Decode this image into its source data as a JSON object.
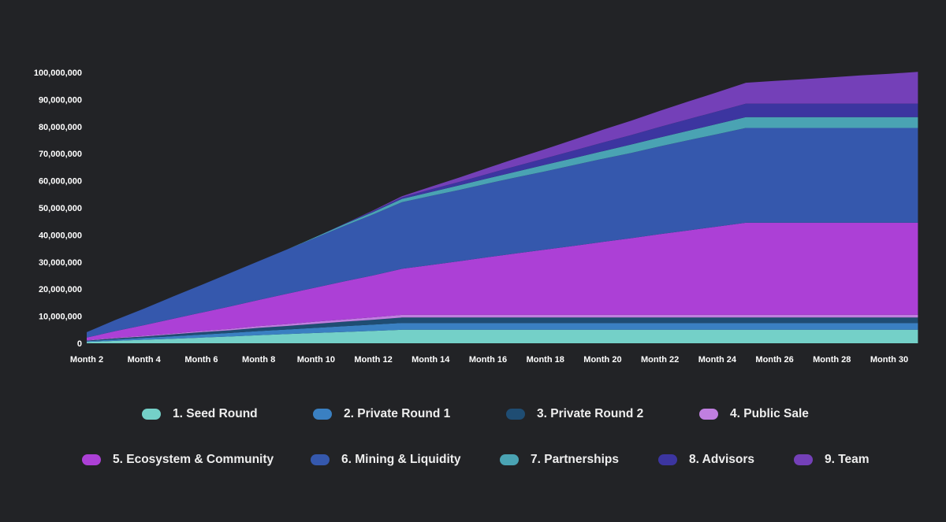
{
  "chart_data": {
    "type": "area",
    "stacked": true,
    "title": "",
    "xlabel": "",
    "ylabel": "",
    "ylim": [
      0,
      100000000
    ],
    "yticks": [
      0,
      10000000,
      20000000,
      30000000,
      40000000,
      50000000,
      60000000,
      70000000,
      80000000,
      90000000,
      100000000
    ],
    "ytick_labels": [
      "0",
      "10,000,000",
      "20,000,000",
      "30,000,000",
      "40,000,000",
      "50,000,000",
      "60,000,000",
      "70,000,000",
      "80,000,000",
      "90,000,000",
      "100,000,000"
    ],
    "grid": false,
    "legend_position": "bottom",
    "categories": [
      "Month 2",
      "Month 3",
      "Month 4",
      "Month 5",
      "Month 6",
      "Month 7",
      "Month 8",
      "Month 9",
      "Month 10",
      "Month 11",
      "Month 12",
      "Month 13",
      "Month 14",
      "Month 15",
      "Month 16",
      "Month 17",
      "Month 18",
      "Month 19",
      "Month 20",
      "Month 21",
      "Month 22",
      "Month 23",
      "Month 24",
      "Month 25",
      "Month 26",
      "Month 27",
      "Month 28",
      "Month 29",
      "Month 30",
      "Month 31"
    ],
    "xtick_labels": [
      "Month 2",
      "Month 4",
      "Month 6",
      "Month 8",
      "Month 10",
      "Month 12",
      "Month 14",
      "Month 16",
      "Month 18",
      "Month 20",
      "Month 22",
      "Month 24",
      "Month 26",
      "Month 28",
      "Month 30"
    ],
    "series": [
      {
        "name": "1. Seed Round",
        "color": "#74d0c8",
        "values": [
          500000,
          900000,
          1300000,
          1700000,
          2100000,
          2500000,
          3000000,
          3400000,
          3800000,
          4200000,
          4600000,
          5000000,
          5000000,
          5000000,
          5000000,
          5000000,
          5000000,
          5000000,
          5000000,
          5000000,
          5000000,
          5000000,
          5000000,
          5000000,
          5000000,
          5000000,
          5000000,
          5000000,
          5000000,
          5000000
        ]
      },
      {
        "name": "2. Private Round 1",
        "color": "#3a80c2",
        "values": [
          300000,
          500000,
          700000,
          900000,
          1100000,
          1300000,
          1500000,
          1700000,
          1900000,
          2100000,
          2300000,
          2500000,
          2500000,
          2500000,
          2500000,
          2500000,
          2500000,
          2500000,
          2500000,
          2500000,
          2500000,
          2500000,
          2500000,
          2500000,
          2500000,
          2500000,
          2500000,
          2500000,
          2500000,
          2500000
        ]
      },
      {
        "name": "3. Private Round 2",
        "color": "#1f4d73",
        "values": [
          200000,
          400000,
          500000,
          700000,
          900000,
          1000000,
          1200000,
          1300000,
          1500000,
          1700000,
          1800000,
          2000000,
          2000000,
          2000000,
          2000000,
          2000000,
          2000000,
          2000000,
          2000000,
          2000000,
          2000000,
          2000000,
          2000000,
          2000000,
          2000000,
          2000000,
          2000000,
          2000000,
          2000000,
          2000000
        ]
      },
      {
        "name": "4. Public Sale",
        "color": "#c07fe0",
        "values": [
          100000,
          200000,
          300000,
          300000,
          400000,
          500000,
          600000,
          700000,
          800000,
          800000,
          900000,
          1000000,
          1000000,
          1000000,
          1000000,
          1000000,
          1000000,
          1000000,
          1000000,
          1000000,
          1000000,
          1000000,
          1000000,
          1000000,
          1000000,
          1000000,
          1000000,
          1000000,
          1000000,
          1000000
        ]
      },
      {
        "name": "5. Ecosystem & Community",
        "color": "#ac40d6",
        "values": [
          1000000,
          2500000,
          3900000,
          5400000,
          6800000,
          8300000,
          9700000,
          11200000,
          12600000,
          14100000,
          15500000,
          17000000,
          18400000,
          19800000,
          21300000,
          22700000,
          24100000,
          25500000,
          26900000,
          28300000,
          29800000,
          31200000,
          32600000,
          34000000,
          34000000,
          34000000,
          34000000,
          34000000,
          34000000,
          34000000
        ]
      },
      {
        "name": "6. Mining & Liquidity",
        "color": "#3558ad",
        "values": [
          2000000,
          4100000,
          6100000,
          8200000,
          10200000,
          12300000,
          14300000,
          16400000,
          18400000,
          20500000,
          22500000,
          24600000,
          25500000,
          26300000,
          27200000,
          28100000,
          28900000,
          29800000,
          30700000,
          31500000,
          32400000,
          33300000,
          34100000,
          35000000,
          35000000,
          35000000,
          35000000,
          35000000,
          35000000,
          35000000
        ]
      },
      {
        "name": "7. Partnerships",
        "color": "#4aa3b3",
        "values": [
          0,
          0,
          0,
          0,
          0,
          0,
          0,
          0,
          300000,
          600000,
          900000,
          1200000,
          1400000,
          1700000,
          1900000,
          2100000,
          2400000,
          2600000,
          2800000,
          3100000,
          3300000,
          3500000,
          3800000,
          4000000,
          4000000,
          4000000,
          4000000,
          4000000,
          4000000,
          4000000
        ]
      },
      {
        "name": "8. Advisors",
        "color": "#3c35a0",
        "values": [
          0,
          0,
          0,
          0,
          0,
          0,
          0,
          0,
          0,
          200000,
          400000,
          600000,
          1000000,
          1300000,
          1700000,
          2100000,
          2400000,
          2800000,
          3200000,
          3500000,
          3900000,
          4300000,
          4600000,
          5000000,
          5000000,
          5000000,
          5000000,
          5000000,
          5000000,
          5000000
        ]
      },
      {
        "name": "9. Team",
        "color": "#7440b8",
        "values": [
          0,
          0,
          0,
          0,
          0,
          0,
          0,
          0,
          0,
          0,
          200000,
          400000,
          1000000,
          1600000,
          2200000,
          2800000,
          3400000,
          4000000,
          4700000,
          5300000,
          5900000,
          6500000,
          7100000,
          7700000,
          8400000,
          9000000,
          9700000,
          10400000,
          11000000,
          11700000
        ]
      }
    ]
  },
  "legend": {
    "row1": [
      {
        "label": "1. Seed Round",
        "color": "#74d0c8"
      },
      {
        "label": "2. Private Round 1",
        "color": "#3a80c2"
      },
      {
        "label": "3. Private Round 2",
        "color": "#1f4d73"
      },
      {
        "label": "4. Public Sale",
        "color": "#c07fe0"
      }
    ],
    "row2": [
      {
        "label": "5. Ecosystem & Community",
        "color": "#ac40d6"
      },
      {
        "label": "6. Mining & Liquidity",
        "color": "#3558ad"
      },
      {
        "label": "7. Partnerships",
        "color": "#4aa3b3"
      },
      {
        "label": "8. Advisors",
        "color": "#3c35a0"
      },
      {
        "label": "9. Team",
        "color": "#7440b8"
      }
    ]
  },
  "colors": {
    "background": "#222326",
    "text": "#ffffff"
  }
}
